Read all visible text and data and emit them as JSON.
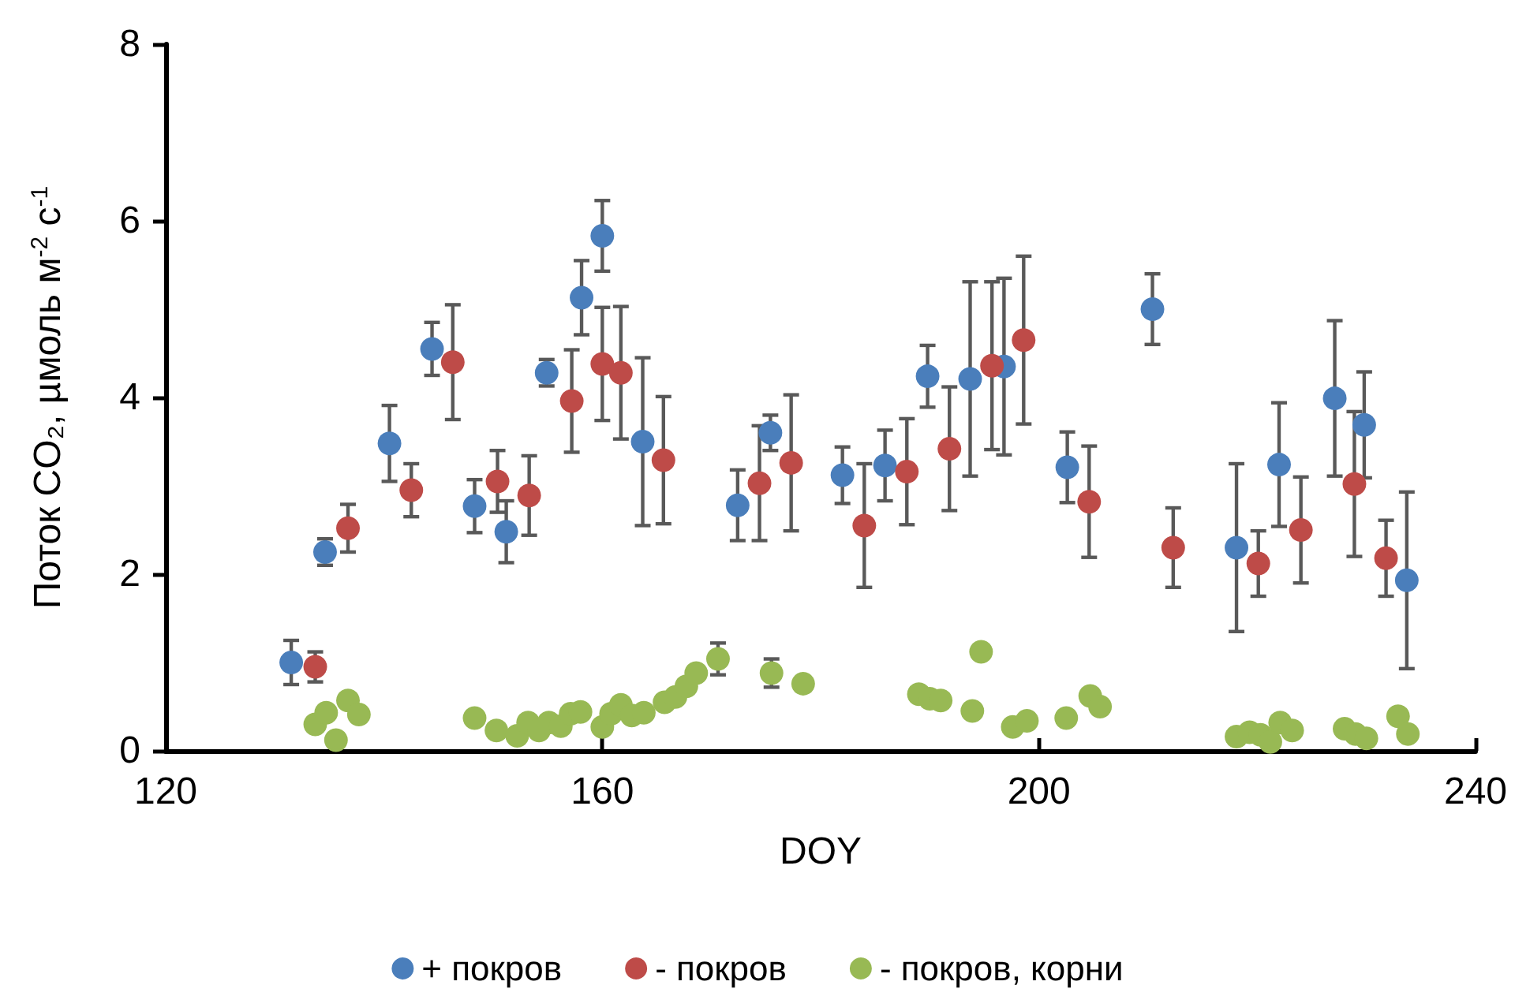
{
  "chart_data": {
    "type": "scatter",
    "xlabel": "DOY",
    "ylabel": "Поток CO₂, µмоль м$^{-2}$ с$^{-1}$",
    "xlim": [
      120,
      240
    ],
    "xticks": [
      120,
      160,
      200,
      240
    ],
    "ylim": [
      0,
      8
    ],
    "yticks": [
      0,
      2,
      4,
      6,
      8
    ],
    "grid": false,
    "legend": "bottom",
    "marker": "circle",
    "series": [
      {
        "name": "+ покров",
        "color": "#4a7ebb",
        "x": [
          131.5,
          134.6,
          140.5,
          144.4,
          148.3,
          151.2,
          154.9,
          158.1,
          160,
          163.7,
          172.4,
          175.4,
          182,
          185.9,
          189.8,
          193.7,
          196.8,
          202.6,
          210.4,
          218.1,
          222,
          227.1,
          229.8,
          233.7
        ],
        "values": [
          1.0,
          2.25,
          3.48,
          4.55,
          2.77,
          2.48,
          4.28,
          5.13,
          5.83,
          3.5,
          2.78,
          3.6,
          3.12,
          3.23,
          4.24,
          4.21,
          4.35,
          3.21,
          5.0,
          2.3,
          3.24,
          3.99,
          3.69,
          1.93
        ],
        "errors": [
          0.25,
          0.15,
          0.43,
          0.3,
          0.3,
          0.35,
          0.15,
          0.42,
          0.4,
          0.95,
          0.4,
          0.2,
          0.32,
          0.4,
          0.35,
          1.1,
          1.0,
          0.4,
          0.4,
          0.95,
          0.7,
          0.88,
          0.6,
          1.0
        ]
      },
      {
        "name": "- покров",
        "color": "#be4b48",
        "x": [
          133.7,
          136.7,
          142.5,
          146.3,
          150.4,
          153.3,
          157.2,
          160,
          161.7,
          165.6,
          174.4,
          177.3,
          184,
          187.9,
          191.8,
          195.7,
          198.6,
          204.6,
          212.3,
          220.1,
          224,
          228.9,
          231.8
        ],
        "values": [
          0.95,
          2.52,
          2.95,
          4.4,
          3.05,
          2.89,
          3.96,
          4.38,
          4.28,
          3.29,
          3.03,
          3.26,
          2.55,
          3.16,
          3.42,
          4.36,
          4.65,
          2.82,
          2.3,
          2.12,
          2.5,
          3.02,
          2.18
        ],
        "errors": [
          0.17,
          0.27,
          0.3,
          0.65,
          0.35,
          0.45,
          0.58,
          0.64,
          0.75,
          0.72,
          0.65,
          0.77,
          0.7,
          0.6,
          0.7,
          0.95,
          0.95,
          0.63,
          0.45,
          0.37,
          0.6,
          0.82,
          0.43
        ]
      },
      {
        "name": "- покров, корни",
        "color": "#98b954",
        "x": [
          133.7,
          134.7,
          135.6,
          136.7,
          137.7,
          148.3,
          150.3,
          152.2,
          153.2,
          154.2,
          155.1,
          156.2,
          157.1,
          158,
          160,
          160.8,
          161.7,
          162.7,
          163.8,
          165.7,
          166.7,
          167.7,
          168.6,
          170.6,
          175.5,
          178.4,
          189,
          190,
          191,
          193.9,
          194.7,
          197.6,
          198.9,
          202.5,
          204.7,
          205.6,
          218.1,
          219.3,
          220.3,
          221.2,
          222.1,
          223.2,
          228,
          229,
          230,
          232.9,
          233.8
        ],
        "values": [
          0.3,
          0.43,
          0.12,
          0.57,
          0.41,
          0.37,
          0.23,
          0.17,
          0.32,
          0.23,
          0.32,
          0.28,
          0.42,
          0.44,
          0.27,
          0.42,
          0.52,
          0.4,
          0.43,
          0.55,
          0.61,
          0.73,
          0.88,
          1.04,
          0.88,
          0.76,
          0.64,
          0.59,
          0.57,
          0.45,
          1.12,
          0.27,
          0.34,
          0.37,
          0.62,
          0.5,
          0.16,
          0.21,
          0.18,
          0.1,
          0.32,
          0.23,
          0.25,
          0.19,
          0.14,
          0.39,
          0.19
        ],
        "errors": [
          null,
          null,
          null,
          null,
          null,
          null,
          null,
          null,
          null,
          null,
          null,
          null,
          null,
          null,
          null,
          null,
          null,
          null,
          null,
          null,
          null,
          null,
          null,
          0.18,
          0.16,
          null,
          null,
          null,
          null,
          null,
          null,
          null,
          null,
          null,
          null,
          null,
          null,
          null,
          null,
          null,
          null,
          null,
          null,
          null,
          null,
          null,
          null
        ]
      }
    ]
  }
}
